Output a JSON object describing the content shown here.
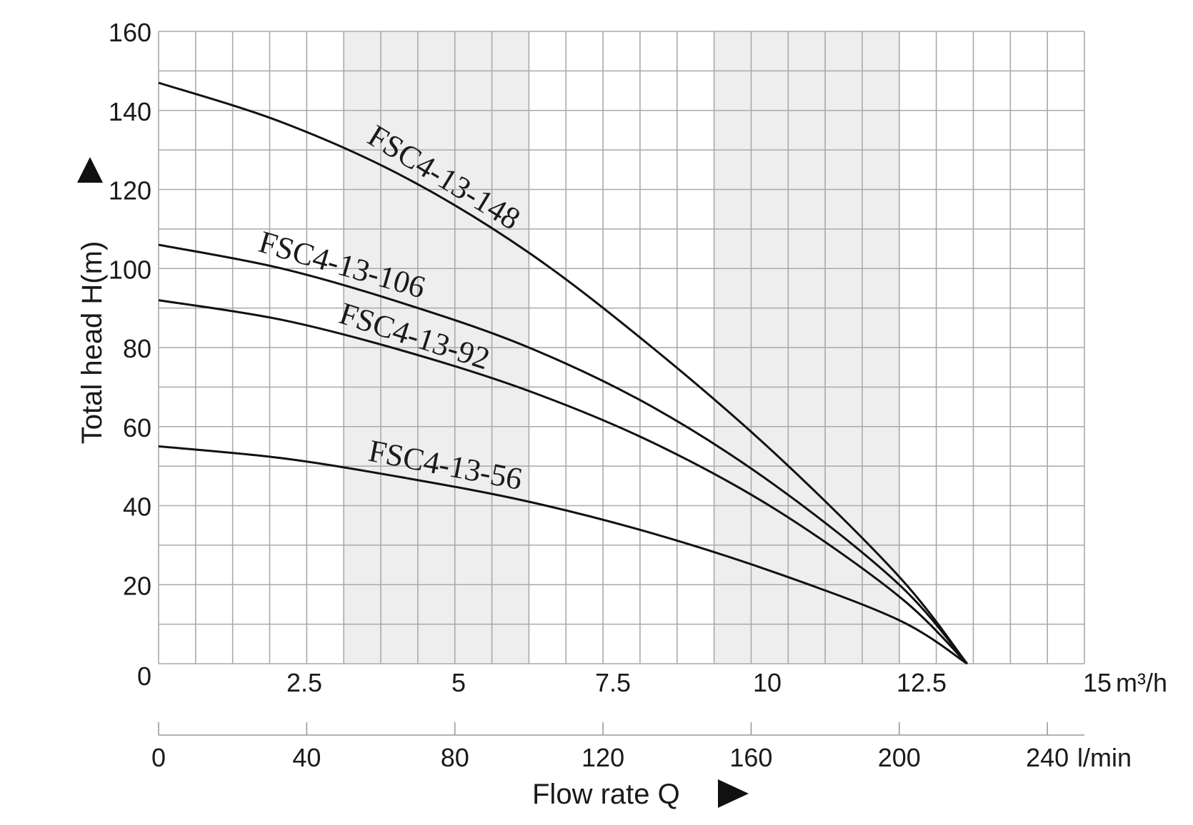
{
  "chart_data": {
    "type": "line",
    "title": "",
    "xlabel": "Flow rate Q",
    "ylabel": "Total head H(m)",
    "x_unit_primary": "m³/h",
    "x_unit_secondary": "l/min",
    "xlim": [
      0,
      15
    ],
    "ylim": [
      0,
      160
    ],
    "x_ticks": [
      "0",
      "2.5",
      "5",
      "7.5",
      "10",
      "12.5",
      "15"
    ],
    "x_ticks_secondary": [
      "0",
      "40",
      "80",
      "120",
      "160",
      "200",
      "240"
    ],
    "y_ticks": [
      "0",
      "20",
      "40",
      "60",
      "80",
      "100",
      "120",
      "140",
      "160"
    ],
    "grid": true,
    "shaded_bands_x": [
      [
        3.0,
        6.0
      ],
      [
        9.0,
        12.0
      ]
    ],
    "series": [
      {
        "name": "FSC4-13-148",
        "x": [
          0,
          2,
          4,
          6,
          8,
          10,
          12,
          13.1
        ],
        "y": [
          147,
          137,
          123,
          104,
          80,
          53,
          22,
          0
        ]
      },
      {
        "name": "FSC4-13-106",
        "x": [
          0,
          2,
          4,
          6,
          8,
          10,
          12,
          13.1
        ],
        "y": [
          106,
          100,
          91,
          80,
          65,
          45,
          20,
          0
        ]
      },
      {
        "name": "FSC4-13-92",
        "x": [
          0,
          2,
          4,
          6,
          8,
          10,
          12,
          13.1
        ],
        "y": [
          92,
          87,
          79,
          69,
          56,
          39,
          17,
          0
        ]
      },
      {
        "name": "FSC4-13-56",
        "x": [
          0,
          2,
          4,
          6,
          8,
          10,
          12,
          13.1
        ],
        "y": [
          55,
          52,
          47,
          41,
          33,
          23,
          11,
          0
        ]
      }
    ]
  }
}
